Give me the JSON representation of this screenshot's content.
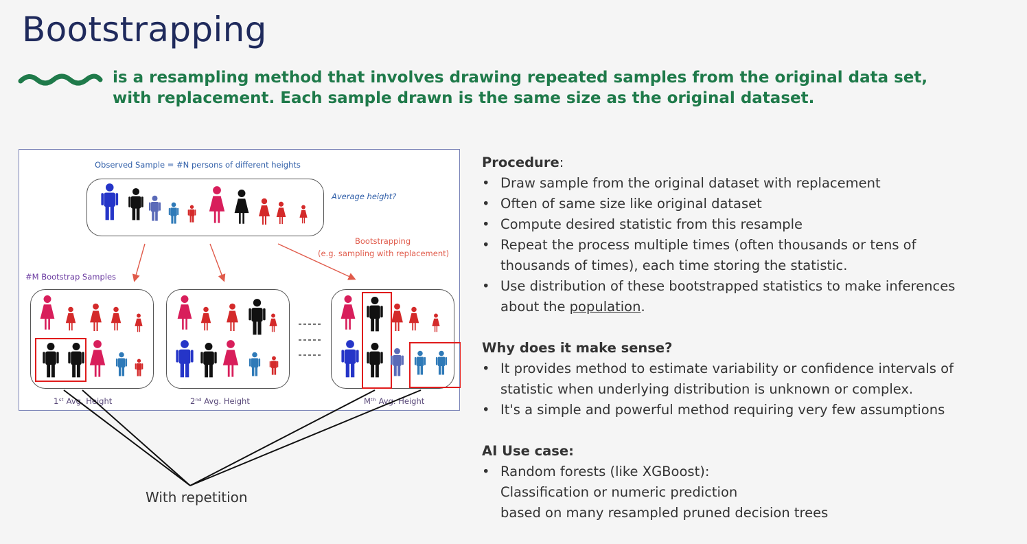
{
  "title": "Bootstrapping",
  "subtitle": {
    "line1": "is a resampling method that involves drawing repeated samples from the original data set,",
    "line2": "with replacement. Each sample drawn is the same size as the original dataset."
  },
  "figure": {
    "observed_label": "Observed Sample = #N persons of different heights",
    "average_label": "Average height?",
    "bootstrapping_label": "Bootstrapping",
    "bootstrapping_sub": "(e.g. sampling with replacement)",
    "samples_label": "#M Bootstrap Samples",
    "avg1_label": "1ˢᵗ Avg. Height",
    "avg2_label": "2ⁿᵈ Avg. Height",
    "avgm_label": "Mᵗʰ Avg. Height",
    "colors": {
      "blue": "#2535c8",
      "black": "#111111",
      "slate": "#5a6ab8",
      "steel": "#2f7ab8",
      "red": "#d42a2a",
      "pink": "#d81e5b",
      "highlight": "#e01b1b"
    }
  },
  "annotation": "With repetition",
  "procedure": {
    "heading": "Procedure",
    "items": [
      "Draw sample from the original dataset with replacement",
      "Often of same size like original dataset",
      "Compute desired statistic from this resample",
      "Repeat the process multiple times (often thousands or tens of",
      "thousands of times), each time storing the statistic.",
      "Use distribution of these bootstrapped statistics to make inferences",
      "about the",
      "population",
      "."
    ]
  },
  "why": {
    "heading": "Why does it make sense?",
    "items": [
      "It provides method to estimate variability or confidence intervals of",
      "statistic when underlying distribution is unknown or complex.",
      "It's a simple and powerful method requiring very few assumptions"
    ]
  },
  "ai": {
    "heading": "AI Use case:",
    "items": [
      "Random forests (like XGBoost):",
      "Classification or numeric prediction",
      "based on many resampled pruned decision trees"
    ]
  }
}
